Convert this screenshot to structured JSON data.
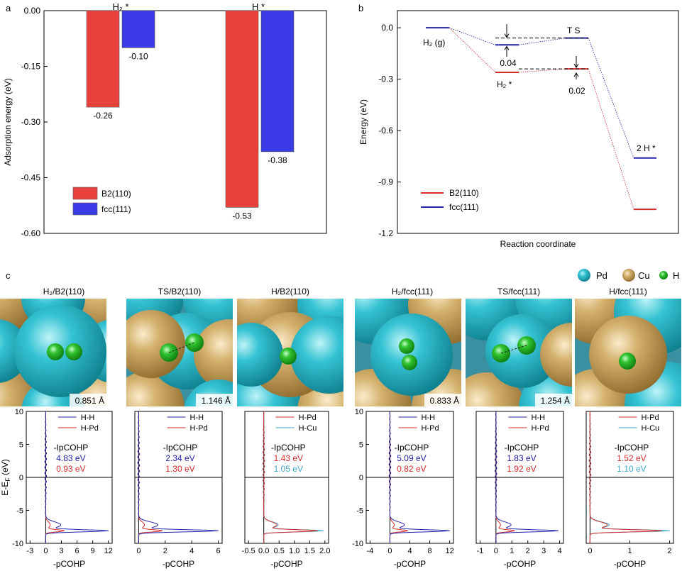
{
  "panel_letters": {
    "a": "a",
    "b": "b",
    "c": "c"
  },
  "colors": {
    "red": "#e8413c",
    "blue": "#3a3ae6",
    "red_line": "#d62b2b",
    "blue_line": "#2222aa",
    "pd": "#2ab6c8",
    "cu": "#c9a45a",
    "h": "#2fb52f",
    "hcu_line": "#3fa7c9"
  },
  "chart_data": [
    {
      "type": "bar",
      "panel": "a",
      "ylabel": "Adsorption energy (eV)",
      "ylim": [
        -0.6,
        0.0
      ],
      "yticks": [
        "0.00",
        "-0.15",
        "-0.30",
        "-0.45",
        "-0.60"
      ],
      "categories": [
        "H₂ *",
        "H *"
      ],
      "series": [
        {
          "name": "B2(110)",
          "color": "#e8413c",
          "values": [
            -0.26,
            -0.53
          ],
          "labels": [
            "-0.26",
            "-0.53"
          ]
        },
        {
          "name": "fcc(111)",
          "color": "#3a3ae6",
          "values": [
            -0.1,
            -0.38
          ],
          "labels": [
            "-0.10",
            "-0.38"
          ]
        }
      ]
    },
    {
      "type": "line",
      "panel": "b",
      "xlabel": "Reaction coordinate",
      "ylabel": "Energy (eV)",
      "ylim": [
        -1.2,
        0.1
      ],
      "yticks": [
        "0.0",
        "-0.3",
        "-0.6",
        "-0.9",
        "-1.2"
      ],
      "states": [
        "H₂ (g)",
        "H₂*",
        "TS",
        "2H*"
      ],
      "series": [
        {
          "name": "B2(110)",
          "color": "#d62b2b",
          "values": [
            0.0,
            -0.26,
            -0.24,
            -1.06
          ]
        },
        {
          "name": "fcc(111)",
          "color": "#2222aa",
          "values": [
            0.0,
            -0.1,
            -0.06,
            -0.76
          ]
        }
      ],
      "annotations": {
        "barrier_fcc": "0.04",
        "barrier_b2": "0.02",
        "state_h2g": "H₂ (g)",
        "state_h2ads": "H₂ *",
        "state_ts": "T S",
        "state_2h": "2 H *"
      }
    }
  ],
  "legend_c": {
    "pd": "Pd",
    "cu": "Cu",
    "h": "H"
  },
  "panels_c": [
    {
      "title": "H₂/B2(110)",
      "distance": "0.851 Å",
      "legend": [
        "H-H",
        "H-Pd"
      ],
      "label": "-IpCOHP",
      "v1": "4.83 eV",
      "v2": "0.93 eV",
      "xticks": [
        "-3",
        "0",
        "3",
        "6",
        "9",
        "12"
      ],
      "xlabel": "-pCOHP",
      "c1": "#2222aa",
      "c2": "#d62b2b"
    },
    {
      "title": "TS/B2(110)",
      "distance": "1.146 Å",
      "legend": [
        "H-H",
        "H-Pd"
      ],
      "label": "-IpCOHP",
      "v1": "2.34 eV",
      "v2": "1.30 eV",
      "xticks": [
        "0",
        "2",
        "4",
        "6"
      ],
      "xlabel": "-pCOHP",
      "c1": "#2222aa",
      "c2": "#d62b2b"
    },
    {
      "title": "H/B2(110)",
      "distance": "",
      "legend": [
        "H-Pd",
        "H-Cu"
      ],
      "label": "-IpCOHP",
      "v1": "1.43 eV",
      "v2": "1.05 eV",
      "xticks": [
        "-0.5",
        "0.0",
        "0.5",
        "1.0",
        "1.5",
        "2.0"
      ],
      "xlabel": "-pCOHP",
      "c1": "#d62b2b",
      "c2": "#3fa7c9"
    },
    {
      "title": "H₂/fcc(111)",
      "distance": "0.833 Å",
      "legend": [
        "H-H",
        "H-Pd"
      ],
      "label": "-IpCOHP",
      "v1": "5.09 eV",
      "v2": "0.82 eV",
      "xticks": [
        "-4",
        "0",
        "4",
        "8",
        "12"
      ],
      "xlabel": "-pCOHP",
      "c1": "#2222aa",
      "c2": "#d62b2b"
    },
    {
      "title": "TS/fcc(111)",
      "distance": "1.254 Å",
      "legend": [
        "H-H",
        "H-Pd"
      ],
      "label": "-IpCOHP",
      "v1": "1.83 eV",
      "v2": "1.92 eV",
      "xticks": [
        "-1",
        "0",
        "1",
        "2",
        "3",
        "4"
      ],
      "xlabel": "-pCOHP",
      "c1": "#2222aa",
      "c2": "#d62b2b"
    },
    {
      "title": "H/fcc(111)",
      "distance": "",
      "legend": [
        "H-Pd",
        "H-Cu"
      ],
      "label": "-IpCOHP",
      "v1": "1.52 eV",
      "v2": "1.10 eV",
      "xticks": [
        "0",
        "1",
        "2"
      ],
      "xlabel": "-pCOHP",
      "c1": "#d62b2b",
      "c2": "#3fa7c9"
    }
  ],
  "cohp_y": {
    "ylabel": "E-E",
    "ylabel_sub": "F",
    "ylabel_unit": " (eV)",
    "yticks": [
      "10",
      "5",
      "0",
      "-5",
      "-10"
    ]
  }
}
